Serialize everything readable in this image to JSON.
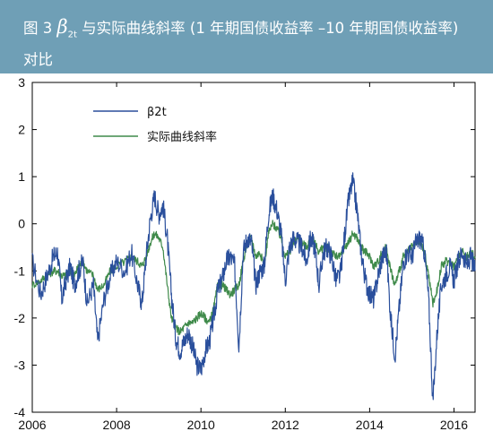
{
  "header": {
    "fig_prefix": "图 3 ",
    "beta_symbol": "β",
    "beta_subscript": "2t",
    "title_rest": " 与实际曲线斜率 (1 年期国债收益率 –10 年期国债收益率)",
    "title_line2": "对比"
  },
  "colors": {
    "header_bg": "#6f9fb6",
    "beta_series": "#2a4f9c",
    "slope_series": "#3f8a4a"
  },
  "chart_data": {
    "type": "line",
    "title": "",
    "xlabel": "",
    "ylabel": "",
    "xlim": [
      2006.0,
      2016.5
    ],
    "ylim": [
      -4,
      3
    ],
    "xticks": [
      "2006",
      "2008",
      "2010",
      "2012",
      "2014",
      "2016"
    ],
    "yticks": [
      "-4",
      "-3",
      "-2",
      "-1",
      "0",
      "1",
      "2",
      "3"
    ],
    "grid": false,
    "legend_position": "top-left",
    "series": [
      {
        "name": "β2t",
        "x": [
          2006.0,
          2006.2,
          2006.35,
          2006.5,
          2006.6,
          2006.7,
          2006.8,
          2006.9,
          2007.0,
          2007.1,
          2007.2,
          2007.3,
          2007.45,
          2007.55,
          2007.7,
          2007.85,
          2008.0,
          2008.2,
          2008.35,
          2008.5,
          2008.6,
          2008.7,
          2008.8,
          2008.9,
          2009.0,
          2009.1,
          2009.2,
          2009.3,
          2009.4,
          2009.5,
          2009.6,
          2009.7,
          2009.8,
          2009.9,
          2010.0,
          2010.1,
          2010.2,
          2010.3,
          2010.4,
          2010.5,
          2010.6,
          2010.7,
          2010.8,
          2010.9,
          2011.0,
          2011.1,
          2011.2,
          2011.3,
          2011.4,
          2011.5,
          2011.6,
          2011.7,
          2011.8,
          2011.9,
          2012.0,
          2012.1,
          2012.2,
          2012.3,
          2012.4,
          2012.5,
          2012.6,
          2012.7,
          2012.8,
          2012.9,
          2013.0,
          2013.1,
          2013.2,
          2013.3,
          2013.4,
          2013.5,
          2013.6,
          2013.7,
          2013.8,
          2013.9,
          2014.0,
          2014.1,
          2014.2,
          2014.3,
          2014.4,
          2014.5,
          2014.6,
          2014.7,
          2014.8,
          2014.9,
          2015.0,
          2015.1,
          2015.2,
          2015.3,
          2015.4,
          2015.5,
          2015.6,
          2015.7,
          2015.8,
          2015.9,
          2016.0,
          2016.1,
          2016.2,
          2016.3,
          2016.4,
          2016.5
        ],
        "y": [
          -0.8,
          -1.5,
          -1.1,
          -0.7,
          -0.6,
          -1.6,
          -1.2,
          -0.9,
          -1.3,
          -1.0,
          -0.8,
          -1.7,
          -1.3,
          -2.5,
          -1.6,
          -1.1,
          -0.8,
          -1.0,
          -0.6,
          -1.3,
          -1.7,
          -0.7,
          0.1,
          0.6,
          0.2,
          0.4,
          -0.3,
          -1.5,
          -2.4,
          -2.7,
          -2.5,
          -2.3,
          -2.6,
          -3.0,
          -3.1,
          -2.7,
          -2.5,
          -2.0,
          -1.4,
          -1.2,
          -0.8,
          -0.7,
          -0.9,
          -2.6,
          -0.6,
          -0.3,
          -0.4,
          -1.3,
          -1.0,
          -0.9,
          0.2,
          0.6,
          0.3,
          -0.2,
          -1.2,
          -0.5,
          -0.3,
          -0.4,
          -0.5,
          -0.8,
          -0.3,
          -0.5,
          -1.3,
          -0.6,
          -0.5,
          -0.7,
          -1.2,
          -1.1,
          -0.3,
          0.5,
          0.9,
          0.3,
          -0.6,
          -1.2,
          -1.5,
          -1.6,
          -1.1,
          -0.7,
          -0.6,
          -2.0,
          -2.8,
          -1.8,
          -0.8,
          -0.6,
          -0.7,
          -0.4,
          -0.3,
          -0.6,
          -1.6,
          -3.8,
          -2.3,
          -1.3,
          -1.1,
          -0.9,
          -1.2,
          -0.8,
          -0.6,
          -0.9,
          -0.7,
          -1.0
        ]
      },
      {
        "name": "实际曲线斜率",
        "x": [
          2006.0,
          2006.2,
          2006.35,
          2006.5,
          2006.6,
          2006.7,
          2006.8,
          2006.9,
          2007.0,
          2007.1,
          2007.2,
          2007.3,
          2007.45,
          2007.55,
          2007.7,
          2007.85,
          2008.0,
          2008.2,
          2008.35,
          2008.5,
          2008.6,
          2008.7,
          2008.8,
          2008.9,
          2009.0,
          2009.1,
          2009.2,
          2009.3,
          2009.4,
          2009.5,
          2009.6,
          2009.7,
          2009.8,
          2009.9,
          2010.0,
          2010.1,
          2010.2,
          2010.3,
          2010.4,
          2010.5,
          2010.6,
          2010.7,
          2010.8,
          2010.9,
          2011.0,
          2011.1,
          2011.2,
          2011.3,
          2011.4,
          2011.5,
          2011.6,
          2011.7,
          2011.8,
          2011.9,
          2012.0,
          2012.1,
          2012.2,
          2012.3,
          2012.4,
          2012.5,
          2012.6,
          2012.7,
          2012.8,
          2012.9,
          2013.0,
          2013.1,
          2013.2,
          2013.3,
          2013.4,
          2013.5,
          2013.6,
          2013.7,
          2013.8,
          2013.9,
          2014.0,
          2014.1,
          2014.2,
          2014.3,
          2014.4,
          2014.5,
          2014.6,
          2014.7,
          2014.8,
          2014.9,
          2015.0,
          2015.1,
          2015.2,
          2015.3,
          2015.4,
          2015.5,
          2015.6,
          2015.7,
          2015.8,
          2015.9,
          2016.0,
          2016.1,
          2016.2,
          2016.3,
          2016.4,
          2016.5
        ],
        "y": [
          -1.3,
          -1.2,
          -1.1,
          -1.0,
          -1.0,
          -1.1,
          -1.1,
          -1.0,
          -1.1,
          -0.9,
          -0.8,
          -1.0,
          -1.1,
          -1.4,
          -1.3,
          -1.0,
          -0.9,
          -0.8,
          -0.7,
          -0.8,
          -0.9,
          -0.7,
          -0.4,
          -0.2,
          -0.3,
          -0.5,
          -1.3,
          -2.0,
          -2.2,
          -2.3,
          -2.2,
          -2.1,
          -2.1,
          -2.0,
          -1.9,
          -2.0,
          -2.1,
          -1.8,
          -1.3,
          -1.3,
          -1.4,
          -1.5,
          -1.4,
          -1.3,
          -0.8,
          -0.4,
          -0.3,
          -0.7,
          -0.6,
          -0.9,
          -0.2,
          0.0,
          -0.1,
          -0.3,
          -0.7,
          -0.6,
          -0.4,
          -0.3,
          -0.4,
          -0.5,
          -0.3,
          -0.4,
          -0.6,
          -0.5,
          -0.5,
          -0.6,
          -0.7,
          -0.7,
          -0.5,
          -0.4,
          -0.2,
          -0.3,
          -0.5,
          -0.6,
          -0.7,
          -0.9,
          -0.8,
          -0.6,
          -0.5,
          -1.0,
          -1.3,
          -1.0,
          -0.7,
          -0.6,
          -0.5,
          -0.4,
          -0.4,
          -0.6,
          -1.1,
          -1.7,
          -1.4,
          -0.9,
          -0.8,
          -0.8,
          -0.9,
          -0.7,
          -0.6,
          -0.7,
          -0.6,
          -0.7
        ]
      }
    ]
  }
}
